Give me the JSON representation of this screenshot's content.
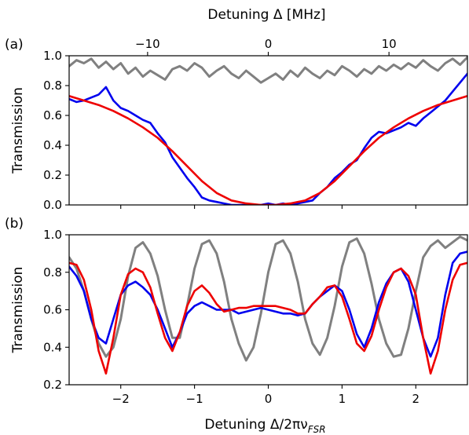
{
  "chart_data": [
    {
      "id": "a",
      "panel_label": "(a)",
      "type": "line",
      "ylabel": "Transmission",
      "top_xlabel": "Detuning Δ [MHz]",
      "top_xlim": [
        -16.5,
        16.5
      ],
      "top_xticks": [
        -10,
        0,
        10
      ],
      "top_xtick_labels": [
        "−10",
        "0",
        "10"
      ],
      "xlim": [
        -2.7,
        2.7
      ],
      "ylim": [
        0.0,
        1.0
      ],
      "yticks": [
        0.0,
        0.2,
        0.4,
        0.6,
        0.8,
        1.0
      ],
      "ytick_labels": [
        "0.0",
        "0.2",
        "0.4",
        "0.6",
        "0.8",
        "1.0"
      ],
      "grid": false,
      "colors": {
        "reference": "#808080",
        "measured": "#0000ee",
        "fit": "#ee0000"
      },
      "series": [
        {
          "key": "reference",
          "x": [
            -2.7,
            -2.6,
            -2.5,
            -2.4,
            -2.3,
            -2.2,
            -2.1,
            -2.0,
            -1.9,
            -1.8,
            -1.7,
            -1.6,
            -1.5,
            -1.4,
            -1.3,
            -1.2,
            -1.1,
            -1.0,
            -0.9,
            -0.8,
            -0.7,
            -0.6,
            -0.5,
            -0.4,
            -0.3,
            -0.2,
            -0.1,
            0.0,
            0.1,
            0.2,
            0.3,
            0.4,
            0.5,
            0.6,
            0.7,
            0.8,
            0.9,
            1.0,
            1.1,
            1.2,
            1.3,
            1.4,
            1.5,
            1.6,
            1.7,
            1.8,
            1.9,
            2.0,
            2.1,
            2.2,
            2.3,
            2.4,
            2.5,
            2.6,
            2.7
          ],
          "y": [
            0.93,
            0.97,
            0.95,
            0.98,
            0.92,
            0.96,
            0.91,
            0.95,
            0.88,
            0.92,
            0.86,
            0.9,
            0.87,
            0.84,
            0.91,
            0.93,
            0.9,
            0.95,
            0.92,
            0.86,
            0.9,
            0.93,
            0.88,
            0.85,
            0.9,
            0.86,
            0.82,
            0.85,
            0.88,
            0.84,
            0.9,
            0.86,
            0.92,
            0.88,
            0.85,
            0.9,
            0.87,
            0.93,
            0.9,
            0.86,
            0.91,
            0.88,
            0.93,
            0.9,
            0.94,
            0.91,
            0.95,
            0.92,
            0.97,
            0.93,
            0.9,
            0.95,
            0.98,
            0.94,
            0.99
          ]
        },
        {
          "key": "measured",
          "x": [
            -2.7,
            -2.6,
            -2.5,
            -2.4,
            -2.3,
            -2.2,
            -2.1,
            -2.0,
            -1.9,
            -1.8,
            -1.7,
            -1.6,
            -1.5,
            -1.4,
            -1.3,
            -1.2,
            -1.1,
            -1.0,
            -0.9,
            -0.8,
            -0.7,
            -0.6,
            -0.5,
            -0.4,
            -0.3,
            -0.2,
            -0.1,
            0.0,
            0.1,
            0.2,
            0.3,
            0.4,
            0.5,
            0.6,
            0.7,
            0.8,
            0.9,
            1.0,
            1.1,
            1.2,
            1.3,
            1.4,
            1.5,
            1.6,
            1.7,
            1.8,
            1.9,
            2.0,
            2.1,
            2.2,
            2.3,
            2.4,
            2.5,
            2.6,
            2.7
          ],
          "y": [
            0.71,
            0.69,
            0.7,
            0.72,
            0.74,
            0.79,
            0.7,
            0.65,
            0.63,
            0.6,
            0.57,
            0.55,
            0.48,
            0.42,
            0.32,
            0.25,
            0.18,
            0.12,
            0.05,
            0.03,
            0.02,
            0.01,
            0.0,
            0.0,
            0.0,
            0.0,
            0.0,
            0.01,
            0.0,
            0.01,
            0.0,
            0.01,
            0.02,
            0.03,
            0.08,
            0.12,
            0.18,
            0.22,
            0.27,
            0.3,
            0.38,
            0.45,
            0.49,
            0.48,
            0.5,
            0.52,
            0.55,
            0.53,
            0.58,
            0.62,
            0.66,
            0.7,
            0.76,
            0.82,
            0.88
          ]
        },
        {
          "key": "fit",
          "x": [
            -2.7,
            -2.5,
            -2.3,
            -2.1,
            -1.9,
            -1.7,
            -1.5,
            -1.3,
            -1.1,
            -0.9,
            -0.7,
            -0.5,
            -0.3,
            -0.1,
            0.1,
            0.3,
            0.5,
            0.7,
            0.9,
            1.1,
            1.3,
            1.5,
            1.7,
            1.9,
            2.1,
            2.3,
            2.5,
            2.7
          ],
          "y": [
            0.73,
            0.7,
            0.67,
            0.63,
            0.58,
            0.52,
            0.45,
            0.36,
            0.26,
            0.16,
            0.08,
            0.03,
            0.01,
            0.0,
            0.0,
            0.01,
            0.03,
            0.08,
            0.16,
            0.26,
            0.36,
            0.45,
            0.52,
            0.58,
            0.63,
            0.67,
            0.7,
            0.73
          ]
        }
      ]
    },
    {
      "id": "b",
      "panel_label": "(b)",
      "type": "line",
      "ylabel": "Transmission",
      "xlabel_text": "Detuning Δ/2πν",
      "xlabel_sub": "FSR",
      "xlim": [
        -2.7,
        2.7
      ],
      "xticks": [
        -2,
        -1,
        0,
        1,
        2
      ],
      "xtick_labels": [
        "−2",
        "−1",
        "0",
        "1",
        "2"
      ],
      "ylim": [
        0.2,
        1.0
      ],
      "yticks": [
        0.2,
        0.4,
        0.6,
        0.8,
        1.0
      ],
      "ytick_labels": [
        "0.2",
        "0.4",
        "0.6",
        "0.8",
        "1.0"
      ],
      "grid": false,
      "colors": {
        "reference": "#808080",
        "measured": "#0000ee",
        "fit": "#ee0000"
      },
      "series": [
        {
          "key": "reference",
          "x": [
            -2.7,
            -2.6,
            -2.5,
            -2.4,
            -2.3,
            -2.2,
            -2.1,
            -2.0,
            -1.9,
            -1.8,
            -1.7,
            -1.6,
            -1.5,
            -1.4,
            -1.3,
            -1.2,
            -1.1,
            -1.0,
            -0.9,
            -0.8,
            -0.7,
            -0.6,
            -0.5,
            -0.4,
            -0.3,
            -0.2,
            -0.1,
            0.0,
            0.1,
            0.2,
            0.3,
            0.4,
            0.5,
            0.6,
            0.7,
            0.8,
            0.9,
            1.0,
            1.1,
            1.2,
            1.3,
            1.4,
            1.5,
            1.6,
            1.7,
            1.8,
            1.9,
            2.0,
            2.1,
            2.2,
            2.3,
            2.4,
            2.5,
            2.6,
            2.7
          ],
          "y": [
            0.88,
            0.82,
            0.7,
            0.55,
            0.42,
            0.35,
            0.4,
            0.55,
            0.78,
            0.93,
            0.96,
            0.9,
            0.78,
            0.6,
            0.45,
            0.45,
            0.62,
            0.82,
            0.95,
            0.97,
            0.9,
            0.75,
            0.55,
            0.42,
            0.33,
            0.4,
            0.58,
            0.8,
            0.95,
            0.97,
            0.9,
            0.75,
            0.55,
            0.42,
            0.36,
            0.45,
            0.62,
            0.83,
            0.96,
            0.98,
            0.9,
            0.74,
            0.55,
            0.42,
            0.35,
            0.36,
            0.5,
            0.7,
            0.88,
            0.94,
            0.97,
            0.93,
            0.96,
            0.99,
            0.97
          ]
        },
        {
          "key": "measured",
          "x": [
            -2.7,
            -2.6,
            -2.5,
            -2.4,
            -2.3,
            -2.2,
            -2.1,
            -2.0,
            -1.9,
            -1.8,
            -1.7,
            -1.6,
            -1.5,
            -1.4,
            -1.3,
            -1.2,
            -1.1,
            -1.0,
            -0.9,
            -0.8,
            -0.7,
            -0.6,
            -0.5,
            -0.4,
            -0.3,
            -0.2,
            -0.1,
            0.0,
            0.1,
            0.2,
            0.3,
            0.4,
            0.5,
            0.6,
            0.7,
            0.8,
            0.9,
            1.0,
            1.1,
            1.2,
            1.3,
            1.4,
            1.5,
            1.6,
            1.7,
            1.8,
            1.9,
            2.0,
            2.1,
            2.2,
            2.3,
            2.4,
            2.5,
            2.6,
            2.7
          ],
          "y": [
            0.83,
            0.78,
            0.7,
            0.55,
            0.45,
            0.42,
            0.55,
            0.68,
            0.73,
            0.75,
            0.72,
            0.68,
            0.6,
            0.5,
            0.4,
            0.48,
            0.58,
            0.62,
            0.64,
            0.62,
            0.6,
            0.6,
            0.6,
            0.58,
            0.59,
            0.6,
            0.61,
            0.6,
            0.59,
            0.58,
            0.58,
            0.57,
            0.58,
            0.63,
            0.67,
            0.7,
            0.73,
            0.7,
            0.6,
            0.47,
            0.4,
            0.5,
            0.64,
            0.74,
            0.8,
            0.82,
            0.75,
            0.6,
            0.45,
            0.35,
            0.45,
            0.68,
            0.85,
            0.9,
            0.91
          ]
        },
        {
          "key": "fit",
          "x": [
            -2.7,
            -2.6,
            -2.5,
            -2.4,
            -2.3,
            -2.2,
            -2.1,
            -2.0,
            -1.9,
            -1.8,
            -1.7,
            -1.6,
            -1.5,
            -1.4,
            -1.3,
            -1.2,
            -1.1,
            -1.0,
            -0.9,
            -0.8,
            -0.7,
            -0.6,
            -0.5,
            -0.4,
            -0.3,
            -0.2,
            -0.1,
            0.0,
            0.1,
            0.2,
            0.3,
            0.4,
            0.5,
            0.6,
            0.7,
            0.8,
            0.9,
            1.0,
            1.1,
            1.2,
            1.3,
            1.4,
            1.5,
            1.6,
            1.7,
            1.8,
            1.9,
            2.0,
            2.1,
            2.2,
            2.3,
            2.4,
            2.5,
            2.6,
            2.7
          ],
          "y": [
            0.85,
            0.84,
            0.76,
            0.6,
            0.38,
            0.26,
            0.45,
            0.68,
            0.79,
            0.82,
            0.8,
            0.72,
            0.58,
            0.45,
            0.38,
            0.48,
            0.62,
            0.7,
            0.73,
            0.69,
            0.63,
            0.59,
            0.6,
            0.61,
            0.61,
            0.62,
            0.62,
            0.62,
            0.62,
            0.61,
            0.6,
            0.58,
            0.58,
            0.63,
            0.67,
            0.72,
            0.73,
            0.67,
            0.55,
            0.42,
            0.38,
            0.46,
            0.6,
            0.72,
            0.8,
            0.82,
            0.78,
            0.68,
            0.45,
            0.26,
            0.38,
            0.6,
            0.76,
            0.84,
            0.85
          ]
        }
      ]
    }
  ]
}
